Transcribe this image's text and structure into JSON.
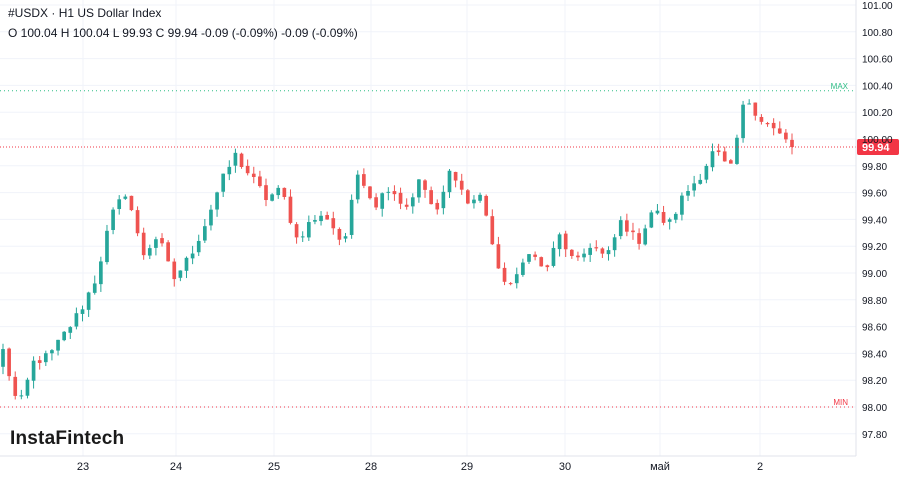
{
  "header": {
    "symbol": "#USDX",
    "separator": "·",
    "timeframe_name": "H1 US Dollar Index",
    "ohlc_text": "O 100.04 H 100.04 L 99.93 C 99.94 -0.09 (-0.09%) -0.09 (-0.09%)"
  },
  "brand": "InstaFintech",
  "chart_data": {
    "type": "candlestick",
    "title": "#USDX · H1 US Dollar Index",
    "ylim": [
      97.7,
      101.05
    ],
    "y_ticks": [
      "101.00",
      "100.80",
      "100.60",
      "100.40",
      "100.20",
      "100.00",
      "99.80",
      "99.60",
      "99.40",
      "99.20",
      "99.00",
      "98.80",
      "98.60",
      "98.40",
      "98.20",
      "98.00",
      "97.80"
    ],
    "x_tick_labels": [
      "23",
      "24",
      "25",
      "28",
      "29",
      "30",
      "май",
      "2"
    ],
    "current_price": {
      "value": 99.94,
      "label": "99.94",
      "color": "#f23645"
    },
    "max_line": {
      "value": 100.36,
      "label": "MAX",
      "color": "#2ebd85"
    },
    "min_line": {
      "value": 98.0,
      "label": "MIN",
      "color": "#f23645"
    },
    "up_color": "#26a69a",
    "down_color": "#ef5350",
    "waypoints": [
      98.42,
      97.98,
      98.34,
      98.38,
      98.55,
      98.72,
      98.96,
      99.42,
      99.62,
      99.13,
      99.28,
      98.95,
      99.11,
      99.35,
      99.65,
      99.88,
      99.72,
      99.56,
      99.62,
      99.25,
      99.4,
      99.42,
      99.2,
      99.78,
      99.5,
      99.66,
      99.48,
      99.7,
      99.42,
      99.8,
      99.52,
      99.58,
      99.0,
      98.9,
      99.18,
      99.0,
      99.28,
      99.05,
      99.22,
      99.1,
      99.4,
      99.22,
      99.48,
      99.35,
      99.58,
      99.72,
      99.92,
      99.75,
      100.32,
      100.15,
      100.05,
      99.94
    ]
  }
}
